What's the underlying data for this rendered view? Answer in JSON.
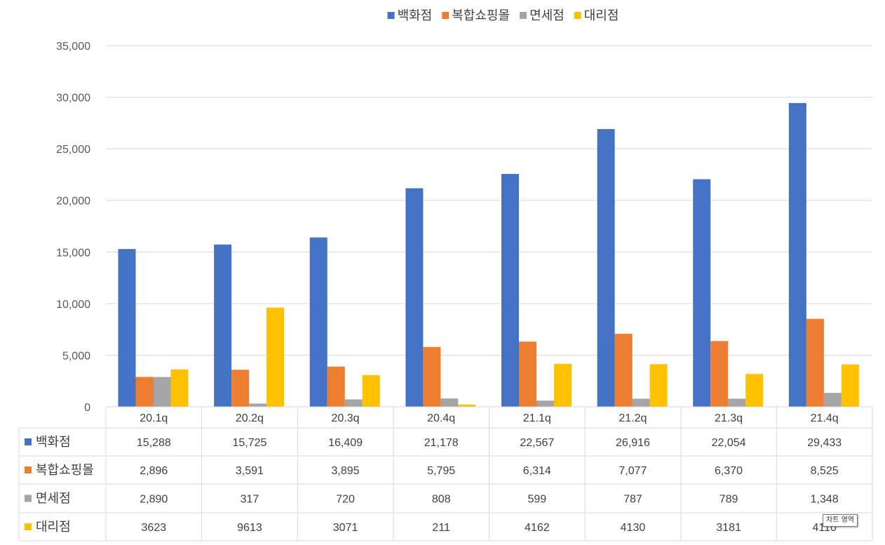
{
  "chart_data": {
    "type": "bar",
    "categories": [
      "20.1q",
      "20.2q",
      "20.3q",
      "20.4q",
      "21.1q",
      "21.2q",
      "21.3q",
      "21.4q"
    ],
    "series": [
      {
        "name": "백화점",
        "color": "#4472C4",
        "values": [
          15288,
          15725,
          16409,
          21178,
          22567,
          26916,
          22054,
          29433
        ],
        "labels": [
          "15,288",
          "15,725",
          "16,409",
          "21,178",
          "22,567",
          "26,916",
          "22,054",
          "29,433"
        ]
      },
      {
        "name": "복합쇼핑몰",
        "color": "#ED7D31",
        "values": [
          2896,
          3591,
          3895,
          5795,
          6314,
          7077,
          6370,
          8525
        ],
        "labels": [
          "2,896",
          "3,591",
          "3,895",
          "5,795",
          "6,314",
          "7,077",
          "6,370",
          "8,525"
        ]
      },
      {
        "name": "면세점",
        "color": "#A5A5A5",
        "values": [
          2890,
          317,
          720,
          808,
          599,
          787,
          789,
          1348
        ],
        "labels": [
          "2,890",
          "317",
          "720",
          "808",
          "599",
          "787",
          "789",
          "1,348"
        ]
      },
      {
        "name": "대리점",
        "color": "#FFC000",
        "values": [
          3623,
          9613,
          3071,
          211,
          4162,
          4130,
          3181,
          4110
        ],
        "labels": [
          "3623",
          "9613",
          "3071",
          "211",
          "4162",
          "4130",
          "3181",
          "4110"
        ]
      }
    ],
    "ylim": [
      0,
      35000
    ],
    "yticks": [
      0,
      5000,
      10000,
      15000,
      20000,
      25000,
      30000,
      35000
    ],
    "ytick_labels": [
      "0",
      "5,000",
      "10,000",
      "15,000",
      "20,000",
      "25,000",
      "30,000",
      "35,000"
    ],
    "grid": true,
    "legend": "top",
    "data_table": true
  },
  "tooltip": "차트 영역"
}
